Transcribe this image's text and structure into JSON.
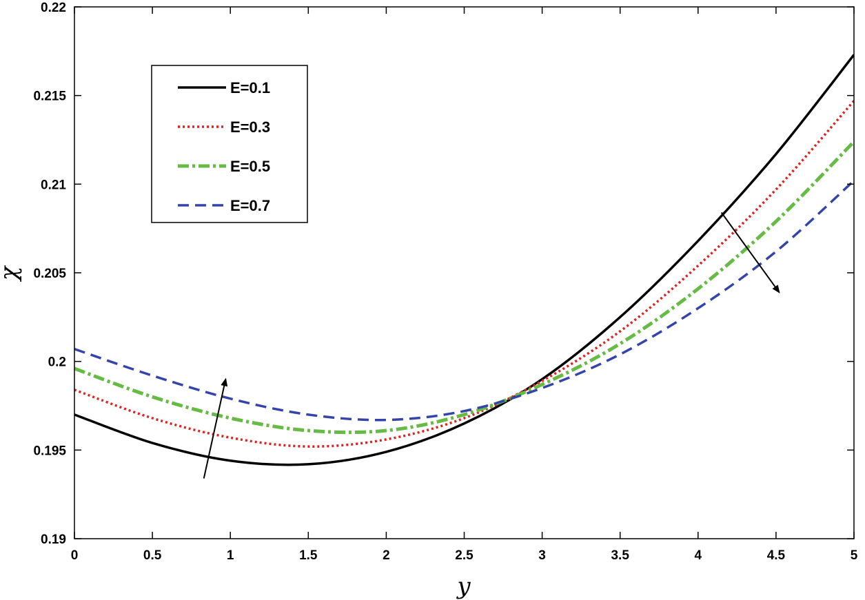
{
  "chart_data": {
    "type": "line",
    "title": "",
    "xlabel": "y",
    "ylabel": "χ",
    "xlim": [
      0,
      5
    ],
    "ylim": [
      0.19,
      0.22
    ],
    "xticks": [
      "0",
      "0.5",
      "1",
      "1.5",
      "2",
      "2.5",
      "3",
      "3.5",
      "4",
      "4.5",
      "5"
    ],
    "yticks": [
      "0.19",
      "0.195",
      "0.2",
      "0.205",
      "0.21",
      "0.215",
      "0.22"
    ],
    "grid": false,
    "legend_position": "top-left",
    "x": [
      0,
      0.5,
      1,
      1.5,
      2,
      2.5,
      3,
      3.5,
      4,
      4.5,
      5
    ],
    "series": [
      {
        "name": "E=0.1",
        "color": "#000000",
        "style": "solid",
        "values": [
          0.197,
          0.1954,
          0.1944,
          0.1942,
          0.1949,
          0.1965,
          0.199,
          0.2025,
          0.2068,
          0.2117,
          0.2173
        ]
      },
      {
        "name": "E=0.3",
        "color": "#dd2222",
        "style": "dotted",
        "values": [
          0.1984,
          0.1968,
          0.1957,
          0.1952,
          0.1956,
          0.1968,
          0.1989,
          0.2017,
          0.2054,
          0.2097,
          0.2147
        ]
      },
      {
        "name": "E=0.5",
        "color": "#66bb44",
        "style": "dashdot",
        "values": [
          0.1996,
          0.198,
          0.1968,
          0.1961,
          0.1961,
          0.197,
          0.1987,
          0.201,
          0.2041,
          0.2079,
          0.2124
        ]
      },
      {
        "name": "E=0.7",
        "color": "#3344aa",
        "style": "dashed",
        "values": [
          0.2007,
          0.1992,
          0.1979,
          0.197,
          0.1967,
          0.1972,
          0.1985,
          0.2004,
          0.203,
          0.2062,
          0.2102
        ]
      }
    ],
    "annotations": [
      {
        "type": "arrow",
        "from": [
          0.83,
          0.1934
        ],
        "to": [
          0.97,
          0.199
        ]
      },
      {
        "type": "arrow",
        "from": [
          4.15,
          0.2084
        ],
        "to": [
          4.52,
          0.2039
        ]
      }
    ]
  }
}
